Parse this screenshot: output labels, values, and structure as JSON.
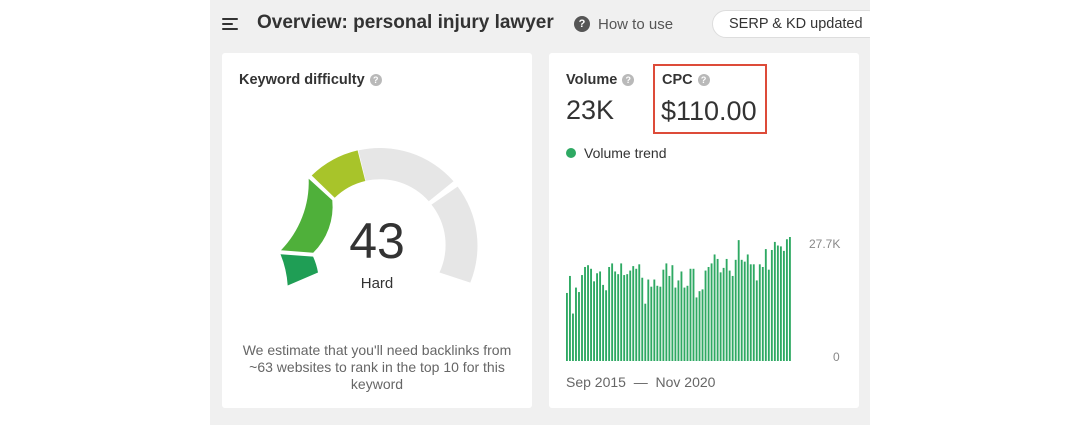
{
  "header": {
    "title": "Overview: personal injury lawyer",
    "how_to_label": "How to use",
    "badge": "SERP & KD updated"
  },
  "kd": {
    "title": "Keyword difficulty",
    "value": 43,
    "display_value": "43",
    "label": "Hard",
    "description": "We estimate that you'll need backlinks from ~63 websites to rank in the top 10 for this keyword",
    "colors": {
      "low": "#1f9e55",
      "mid": "#4fb03a",
      "high": "#a8c42a",
      "track": "#e6e6e6"
    }
  },
  "volume": {
    "label": "Volume",
    "value": "23K"
  },
  "cpc": {
    "label": "CPC",
    "value": "$110.00",
    "highlight_color": "#dd4b39"
  },
  "chart_data": {
    "type": "bar",
    "title": "",
    "series": [
      {
        "name": "Volume trend",
        "color": "#2ea963",
        "values": [
          15.2,
          19,
          10.6,
          16.4,
          15.4,
          19.2,
          21,
          21.4,
          20.6,
          17.8,
          19.6,
          20,
          17,
          15.8,
          21,
          21.8,
          20,
          19.4,
          21.8,
          19.2,
          19.4,
          20.2,
          21.2,
          20.6,
          21.6,
          18.6,
          12.8,
          18.2,
          16.6,
          18.2,
          16.8,
          16.6,
          20.4,
          21.8,
          19,
          21.4,
          16.4,
          18,
          20,
          16.4,
          16.8,
          20.6,
          20.6,
          14.2,
          15.6,
          16,
          20.2,
          21,
          21.8,
          23.8,
          22.8,
          19.8,
          20.8,
          22.8,
          20.2,
          19,
          22.6,
          27,
          22.6,
          22.2,
          23.8,
          21.6,
          21.6,
          18,
          21.6,
          21,
          25,
          20.4,
          24.8,
          26.6,
          25.8,
          25.6,
          24.6,
          27.2,
          27.7
        ]
      }
    ],
    "x_range": [
      "Sep 2015",
      "Nov 2020"
    ],
    "y_axis": {
      "ylim": [
        0,
        27.7
      ],
      "max_label": "27.7K",
      "min_label": "0",
      "position": "right"
    },
    "grid": false,
    "legend": "top-left"
  }
}
